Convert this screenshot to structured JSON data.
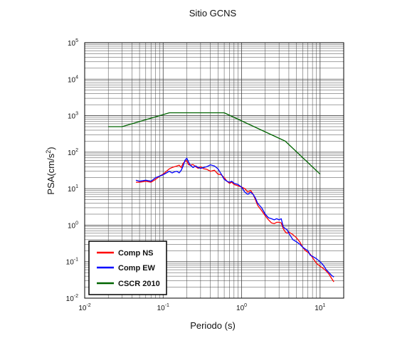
{
  "chart_data": {
    "type": "line",
    "title": "Sitio GCNS",
    "xlabel": "Periodo (s)",
    "ylabel_prefix": "PSA(cm/s",
    "ylabel_sup": "2",
    "ylabel_suffix": ")",
    "xscale": "log",
    "yscale": "log",
    "xlim": [
      0.01,
      20
    ],
    "ylim": [
      0.01,
      100000
    ],
    "grid": true,
    "legend_position": "bottom-left",
    "x_ticks": [
      {
        "base": "10",
        "exp": "-2",
        "value": 0.01
      },
      {
        "base": "10",
        "exp": "-1",
        "value": 0.1
      },
      {
        "base": "10",
        "exp": "0",
        "value": 1
      },
      {
        "base": "10",
        "exp": "1",
        "value": 10
      }
    ],
    "y_ticks": [
      {
        "base": "10",
        "exp": "-2",
        "value": 0.01
      },
      {
        "base": "10",
        "exp": "-1",
        "value": 0.1
      },
      {
        "base": "10",
        "exp": "0",
        "value": 1
      },
      {
        "base": "10",
        "exp": "1",
        "value": 10
      },
      {
        "base": "10",
        "exp": "2",
        "value": 100
      },
      {
        "base": "10",
        "exp": "3",
        "value": 1000
      },
      {
        "base": "10",
        "exp": "4",
        "value": 10000
      },
      {
        "base": "10",
        "exp": "5",
        "value": 100000
      }
    ],
    "series": [
      {
        "name": "Comp NS",
        "color": "#ff0000",
        "points": [
          [
            0.045,
            15
          ],
          [
            0.05,
            15
          ],
          [
            0.06,
            16
          ],
          [
            0.07,
            15
          ],
          [
            0.08,
            18
          ],
          [
            0.09,
            22
          ],
          [
            0.1,
            25
          ],
          [
            0.11,
            30
          ],
          [
            0.12,
            35
          ],
          [
            0.13,
            38
          ],
          [
            0.14,
            40
          ],
          [
            0.15,
            42
          ],
          [
            0.16,
            44
          ],
          [
            0.17,
            38
          ],
          [
            0.18,
            50
          ],
          [
            0.19,
            56
          ],
          [
            0.2,
            58
          ],
          [
            0.21,
            46
          ],
          [
            0.22,
            44
          ],
          [
            0.24,
            46
          ],
          [
            0.26,
            40
          ],
          [
            0.28,
            36
          ],
          [
            0.3,
            40
          ],
          [
            0.33,
            35
          ],
          [
            0.36,
            34
          ],
          [
            0.4,
            30
          ],
          [
            0.45,
            32
          ],
          [
            0.5,
            25
          ],
          [
            0.55,
            24
          ],
          [
            0.6,
            20
          ],
          [
            0.65,
            16
          ],
          [
            0.7,
            14
          ],
          [
            0.75,
            15
          ],
          [
            0.8,
            13
          ],
          [
            0.9,
            12
          ],
          [
            1.0,
            11
          ],
          [
            1.1,
            10
          ],
          [
            1.2,
            8
          ],
          [
            1.3,
            9
          ],
          [
            1.4,
            7
          ],
          [
            1.5,
            5
          ],
          [
            1.6,
            3.5
          ],
          [
            1.8,
            2.5
          ],
          [
            2.0,
            1.8
          ],
          [
            2.2,
            1.4
          ],
          [
            2.4,
            1.15
          ],
          [
            2.6,
            1.1
          ],
          [
            2.8,
            1.2
          ],
          [
            3.0,
            1.2
          ],
          [
            3.2,
            1.15
          ],
          [
            3.4,
            0.8
          ],
          [
            3.6,
            0.65
          ],
          [
            3.8,
            0.6
          ],
          [
            4.0,
            0.65
          ],
          [
            4.5,
            0.55
          ],
          [
            5.0,
            0.45
          ],
          [
            5.5,
            0.35
          ],
          [
            6.0,
            0.25
          ],
          [
            6.5,
            0.2
          ],
          [
            7.0,
            0.18
          ],
          [
            7.5,
            0.16
          ],
          [
            8.0,
            0.13
          ],
          [
            9.0,
            0.09
          ],
          [
            10,
            0.075
          ],
          [
            11,
            0.065
          ],
          [
            12,
            0.055
          ],
          [
            13,
            0.045
          ],
          [
            14,
            0.035
          ],
          [
            15,
            0.028
          ]
        ]
      },
      {
        "name": "Comp EW",
        "color": "#0000ff",
        "points": [
          [
            0.045,
            17
          ],
          [
            0.05,
            16
          ],
          [
            0.06,
            17
          ],
          [
            0.07,
            16
          ],
          [
            0.08,
            20
          ],
          [
            0.09,
            22
          ],
          [
            0.1,
            24
          ],
          [
            0.11,
            27
          ],
          [
            0.12,
            30
          ],
          [
            0.13,
            27
          ],
          [
            0.14,
            29
          ],
          [
            0.15,
            30
          ],
          [
            0.16,
            27
          ],
          [
            0.17,
            32
          ],
          [
            0.18,
            42
          ],
          [
            0.19,
            60
          ],
          [
            0.2,
            68
          ],
          [
            0.21,
            55
          ],
          [
            0.22,
            45
          ],
          [
            0.24,
            38
          ],
          [
            0.26,
            42
          ],
          [
            0.28,
            38
          ],
          [
            0.3,
            36
          ],
          [
            0.33,
            38
          ],
          [
            0.36,
            40
          ],
          [
            0.4,
            45
          ],
          [
            0.45,
            42
          ],
          [
            0.5,
            35
          ],
          [
            0.55,
            25
          ],
          [
            0.6,
            18
          ],
          [
            0.65,
            16
          ],
          [
            0.7,
            15
          ],
          [
            0.75,
            16
          ],
          [
            0.8,
            14
          ],
          [
            0.9,
            13
          ],
          [
            1.0,
            11
          ],
          [
            1.1,
            8
          ],
          [
            1.2,
            7
          ],
          [
            1.3,
            8
          ],
          [
            1.4,
            7
          ],
          [
            1.5,
            5.5
          ],
          [
            1.6,
            4
          ],
          [
            1.8,
            3
          ],
          [
            2.0,
            2
          ],
          [
            2.2,
            1.6
          ],
          [
            2.4,
            1.5
          ],
          [
            2.6,
            1.4
          ],
          [
            2.8,
            1.5
          ],
          [
            3.0,
            1.4
          ],
          [
            3.2,
            1.5
          ],
          [
            3.4,
            0.9
          ],
          [
            3.6,
            0.8
          ],
          [
            3.8,
            0.75
          ],
          [
            4.0,
            0.6
          ],
          [
            4.5,
            0.4
          ],
          [
            5.0,
            0.35
          ],
          [
            5.5,
            0.3
          ],
          [
            6.0,
            0.25
          ],
          [
            6.5,
            0.22
          ],
          [
            7.0,
            0.2
          ],
          [
            7.5,
            0.15
          ],
          [
            8.0,
            0.14
          ],
          [
            9.0,
            0.12
          ],
          [
            10,
            0.1
          ],
          [
            11,
            0.08
          ],
          [
            12,
            0.06
          ],
          [
            13,
            0.05
          ],
          [
            14,
            0.042
          ],
          [
            15,
            0.038
          ]
        ]
      },
      {
        "name": "CSCR 2010",
        "color": "#006400",
        "points": [
          [
            0.02,
            500
          ],
          [
            0.03,
            500
          ],
          [
            0.12,
            1200
          ],
          [
            0.6,
            1200
          ],
          [
            3.6,
            200
          ],
          [
            10,
            25
          ]
        ]
      }
    ]
  }
}
